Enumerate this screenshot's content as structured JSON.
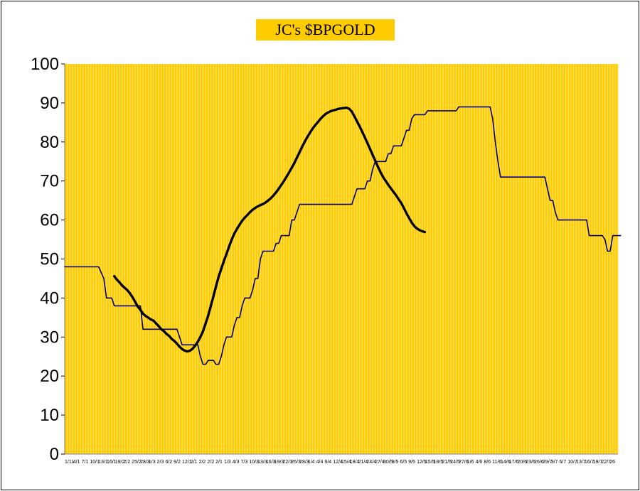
{
  "chart_data": {
    "type": "line",
    "title": "JC's $BPGOLD",
    "xlabel": "",
    "ylabel": "",
    "ylim": [
      0,
      100
    ],
    "yticks": [
      0,
      10,
      20,
      30,
      40,
      50,
      60,
      70,
      80,
      90,
      100
    ],
    "grid": "vertical lines every category",
    "legend": "none",
    "colors": {
      "plot_background": "#ffcc00",
      "grid": "#ffe680",
      "series_line": "#000066",
      "moving_average": "#000000",
      "title_box": "#ffcc00"
    },
    "n_points": 213,
    "xtick_labels": [
      "1/11",
      "4/1",
      "7/1",
      "10/1",
      "13/1",
      "16/1",
      "19/2",
      "2/2",
      "25/2",
      "28/3",
      "1/3",
      "2/3",
      "6/2",
      "9/2",
      "12/1",
      "2/1",
      "2/2",
      "2/2",
      "2/1",
      "1/3",
      "4/3",
      "7/3",
      "10/3",
      "13/3",
      "16/3",
      "19/3",
      "22/3",
      "25/3",
      "28/3",
      "1/4",
      "4/4",
      "9/4",
      "12/4",
      "15/4",
      "18/4",
      "21/4",
      "24/4",
      "27/4",
      "30/5",
      "3/5",
      "6/5",
      "9/5",
      "12/5",
      "15/5",
      "18/5",
      "21/5",
      "24/5",
      "27/6",
      "1/6",
      "4/6",
      "8/6",
      "11/6",
      "14/6",
      "17/6",
      "20/6",
      "23/6",
      "26/6",
      "29/7",
      "3/7",
      "6/7",
      "10/7",
      "13/7",
      "16/7",
      "19/7",
      "22/7",
      "26"
    ],
    "series": [
      {
        "points": [
          [
            0,
            48
          ],
          [
            13,
            48
          ],
          [
            15,
            45
          ],
          [
            16,
            40
          ],
          [
            18,
            40
          ],
          [
            19,
            38
          ],
          [
            29,
            38
          ],
          [
            30,
            32
          ],
          [
            43,
            32
          ],
          [
            44,
            30
          ],
          [
            45,
            28
          ],
          [
            51,
            28
          ],
          [
            52,
            25
          ],
          [
            53,
            23
          ],
          [
            54,
            23
          ],
          [
            55,
            24
          ],
          [
            57,
            24
          ],
          [
            58,
            23
          ],
          [
            59,
            23
          ],
          [
            60,
            25
          ],
          [
            61,
            28
          ],
          [
            62,
            30
          ],
          [
            64,
            30
          ],
          [
            65,
            33
          ],
          [
            66,
            35
          ],
          [
            67,
            35
          ],
          [
            68,
            38
          ],
          [
            69,
            40
          ],
          [
            71,
            40
          ],
          [
            72,
            42
          ],
          [
            73,
            45
          ],
          [
            74,
            45
          ],
          [
            75,
            50
          ],
          [
            76,
            52
          ],
          [
            80,
            52
          ],
          [
            81,
            54
          ],
          [
            82,
            54
          ],
          [
            83,
            56
          ],
          [
            86,
            56
          ],
          [
            87,
            60
          ],
          [
            88,
            60
          ],
          [
            89,
            62
          ],
          [
            90,
            64
          ],
          [
            110,
            64
          ],
          [
            111,
            66
          ],
          [
            112,
            68
          ],
          [
            115,
            68
          ],
          [
            116,
            70
          ],
          [
            117,
            70
          ],
          [
            118,
            73
          ],
          [
            119,
            75
          ],
          [
            123,
            75
          ],
          [
            124,
            77
          ],
          [
            125,
            77
          ],
          [
            126,
            79
          ],
          [
            129,
            79
          ],
          [
            130,
            81
          ],
          [
            131,
            83
          ],
          [
            132,
            83
          ],
          [
            133,
            86
          ],
          [
            134,
            87
          ],
          [
            138,
            87
          ],
          [
            139,
            88
          ],
          [
            150,
            88
          ],
          [
            151,
            89
          ],
          [
            163,
            89
          ],
          [
            164,
            86
          ],
          [
            165,
            80
          ],
          [
            166,
            75
          ],
          [
            167,
            71
          ],
          [
            184,
            71
          ],
          [
            185,
            68
          ],
          [
            186,
            65
          ],
          [
            187,
            65
          ],
          [
            188,
            62
          ],
          [
            189,
            60
          ],
          [
            200,
            60
          ],
          [
            201,
            56
          ],
          [
            206,
            56
          ],
          [
            207,
            55
          ],
          [
            208,
            52
          ],
          [
            209,
            52
          ],
          [
            210,
            56
          ],
          [
            213,
            56
          ]
        ]
      },
      {
        "points": [
          [
            19,
            45.6
          ],
          [
            20,
            44.7
          ],
          [
            21,
            44
          ],
          [
            22,
            43.2
          ],
          [
            23,
            42.6
          ],
          [
            24,
            42
          ],
          [
            25,
            41.2
          ],
          [
            26,
            40.2
          ],
          [
            27,
            39
          ],
          [
            28,
            37.8
          ],
          [
            29,
            37
          ],
          [
            30,
            36
          ],
          [
            31,
            35.4
          ],
          [
            32,
            35
          ],
          [
            33,
            34.5
          ],
          [
            34,
            34.2
          ],
          [
            35,
            33.5
          ],
          [
            36,
            32.8
          ],
          [
            37,
            32
          ],
          [
            38,
            31.5
          ],
          [
            39,
            30.8
          ],
          [
            40,
            30.3
          ],
          [
            41,
            29.5
          ],
          [
            42,
            29
          ],
          [
            43,
            28.3
          ],
          [
            44,
            27.5
          ],
          [
            45,
            26.9
          ],
          [
            46,
            26.5
          ],
          [
            47,
            26.3
          ],
          [
            48,
            26.5
          ],
          [
            49,
            27
          ],
          [
            50,
            27.8
          ],
          [
            51,
            28.8
          ],
          [
            52,
            30
          ],
          [
            53,
            31.5
          ],
          [
            54,
            33.5
          ],
          [
            55,
            35.5
          ],
          [
            56,
            38
          ],
          [
            57,
            40.5
          ],
          [
            58,
            43
          ],
          [
            59,
            45.5
          ],
          [
            60,
            47.5
          ],
          [
            61,
            49.5
          ],
          [
            62,
            51.3
          ],
          [
            63,
            53.2
          ],
          [
            64,
            55
          ],
          [
            65,
            56.5
          ],
          [
            66,
            57.7
          ],
          [
            67,
            58.8
          ],
          [
            68,
            59.8
          ],
          [
            69,
            60.6
          ],
          [
            70,
            61.3
          ],
          [
            71,
            62
          ],
          [
            72,
            62.6
          ],
          [
            73,
            63.1
          ],
          [
            74,
            63.5
          ],
          [
            75,
            63.8
          ],
          [
            76,
            64.1
          ],
          [
            77,
            64.5
          ],
          [
            78,
            65
          ],
          [
            79,
            65.6
          ],
          [
            80,
            66.3
          ],
          [
            81,
            67.1
          ],
          [
            82,
            68
          ],
          [
            83,
            69
          ],
          [
            84,
            70
          ],
          [
            85,
            71.1
          ],
          [
            86,
            72.2
          ],
          [
            87,
            73.4
          ],
          [
            88,
            74.6
          ],
          [
            89,
            76
          ],
          [
            90,
            77.4
          ],
          [
            91,
            78.8
          ],
          [
            92,
            80.1
          ],
          [
            93,
            81.3
          ],
          [
            94,
            82.4
          ],
          [
            95,
            83.4
          ],
          [
            96,
            84.3
          ],
          [
            97,
            85.1
          ],
          [
            98,
            85.9
          ],
          [
            99,
            86.6
          ],
          [
            100,
            87.2
          ],
          [
            101,
            87.6
          ],
          [
            102,
            87.9
          ],
          [
            103,
            88.1
          ],
          [
            104,
            88.3
          ],
          [
            105,
            88.5
          ],
          [
            106,
            88.6
          ],
          [
            107,
            88.7
          ],
          [
            108,
            88.8
          ],
          [
            109,
            88.5
          ],
          [
            110,
            87.8
          ],
          [
            111,
            86.6
          ],
          [
            112,
            85.3
          ],
          [
            113,
            84
          ],
          [
            114,
            82.6
          ],
          [
            115,
            81.2
          ],
          [
            116,
            79.7
          ],
          [
            117,
            78.2
          ],
          [
            118,
            76.7
          ],
          [
            119,
            75.2
          ],
          [
            120,
            73.7
          ],
          [
            121,
            72.3
          ],
          [
            122,
            71
          ],
          [
            123,
            70
          ],
          [
            124,
            69
          ],
          [
            125,
            68.1
          ],
          [
            126,
            67.2
          ],
          [
            127,
            66.3
          ],
          [
            128,
            65.3
          ],
          [
            129,
            64.3
          ],
          [
            130,
            63
          ],
          [
            131,
            61.7
          ],
          [
            132,
            60.5
          ],
          [
            133,
            59.3
          ],
          [
            134,
            58.4
          ],
          [
            135,
            57.8
          ],
          [
            136,
            57.4
          ],
          [
            137,
            57.1
          ],
          [
            138,
            56.9
          ]
        ]
      }
    ]
  }
}
